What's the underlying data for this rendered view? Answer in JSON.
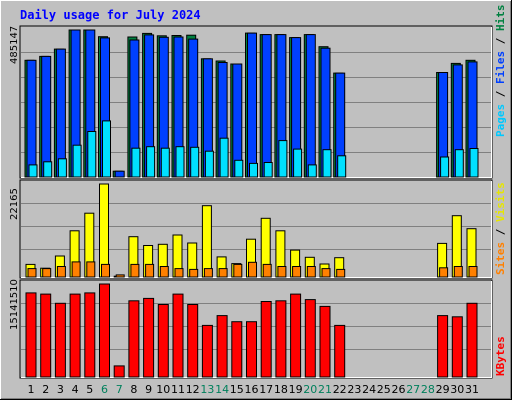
{
  "chart_data": {
    "type": "bar",
    "title": "Daily usage for July 2024",
    "categories": [
      "1",
      "2",
      "3",
      "4",
      "5",
      "6",
      "7",
      "8",
      "9",
      "10",
      "11",
      "12",
      "13",
      "14",
      "15",
      "16",
      "17",
      "18",
      "19",
      "20",
      "21",
      "22",
      "23",
      "24",
      "25",
      "26",
      "27",
      "28",
      "29",
      "30",
      "31"
    ],
    "weekend_days": [
      "6",
      "7",
      "13",
      "14",
      "20",
      "21",
      "27",
      "28"
    ],
    "panels": [
      {
        "id": "hits",
        "max_label": "485147",
        "ymax": 485147,
        "series": [
          {
            "name": "Hits",
            "color": "#008040",
            "values": [
              385000,
              398000,
              422000,
              485147,
              485147,
              463000,
              19000,
              462000,
              474000,
              466000,
              467000,
              468000,
              390000,
              383000,
              373000,
              475000,
              470000,
              470000,
              460000,
              470000,
              430000,
              343000,
              0,
              0,
              0,
              0,
              0,
              0,
              345000,
              375000,
              385000
            ]
          },
          {
            "name": "Files",
            "color": "#0040ff",
            "values": [
              385000,
              398000,
              422000,
              485147,
              485147,
              459000,
              19000,
              452000,
              469000,
              461000,
              462000,
              455000,
              390000,
              378000,
              373000,
              475000,
              470000,
              470000,
              460000,
              470000,
              425000,
              343000,
              0,
              0,
              0,
              0,
              0,
              0,
              345000,
              370000,
              380000
            ]
          },
          {
            "name": "Pages",
            "color": "#00e0ff",
            "values": [
              40000,
              50000,
              60000,
              105000,
              150000,
              185000,
              0,
              95000,
              100000,
              95000,
              100000,
              98000,
              85000,
              128000,
              55000,
              45000,
              48000,
              120000,
              92000,
              40000,
              90000,
              70000,
              0,
              0,
              0,
              0,
              0,
              0,
              66000,
              90000,
              94000
            ]
          }
        ]
      },
      {
        "id": "visits",
        "max_label": "22165",
        "ymax": 22165,
        "series": [
          {
            "name": "Visits",
            "color": "#ffff00",
            "values": [
              3000,
              2100,
              5000,
              11000,
              15200,
              22165,
              200,
              9600,
              7500,
              7800,
              10000,
              8100,
              17000,
              4800,
              3200,
              9000,
              14000,
              11000,
              6400,
              4700,
              3100,
              4600,
              0,
              0,
              0,
              0,
              0,
              0,
              8000,
              14600,
              11500
            ]
          },
          {
            "name": "Sites",
            "color": "#ff8000",
            "values": [
              2000,
              2000,
              2500,
              3600,
              3600,
              3000,
              500,
              3000,
              3000,
              2500,
              2000,
              1800,
              2000,
              2000,
              3000,
              3500,
              3000,
              2500,
              2500,
              2500,
              2000,
              1800,
              0,
              0,
              0,
              0,
              0,
              0,
              2200,
              2500,
              2500
            ]
          }
        ]
      },
      {
        "id": "kbytes",
        "max_label": "15141510",
        "ymax": 15141510,
        "series": [
          {
            "name": "KBytes",
            "color": "#ff0000",
            "values": [
              13700000,
              13500000,
              12000000,
              13500000,
              13700000,
              15141510,
              1800000,
              12400000,
              12800000,
              11800000,
              13500000,
              11800000,
              8400000,
              10000000,
              9000000,
              9000000,
              12300000,
              12400000,
              13500000,
              12600000,
              11500000,
              8400000,
              0,
              0,
              0,
              0,
              0,
              0,
              10000000,
              9800000,
              12000000
            ]
          }
        ]
      }
    ],
    "legend": [
      "Hits",
      "Files",
      "Pages",
      "Sites",
      "Visits",
      "KBytes"
    ],
    "colors": {
      "background": "#c0c0c0",
      "title": "#0000ff",
      "weekday_label": "#000000",
      "weekend_label": "#00805c",
      "gridline": "#808080"
    }
  }
}
